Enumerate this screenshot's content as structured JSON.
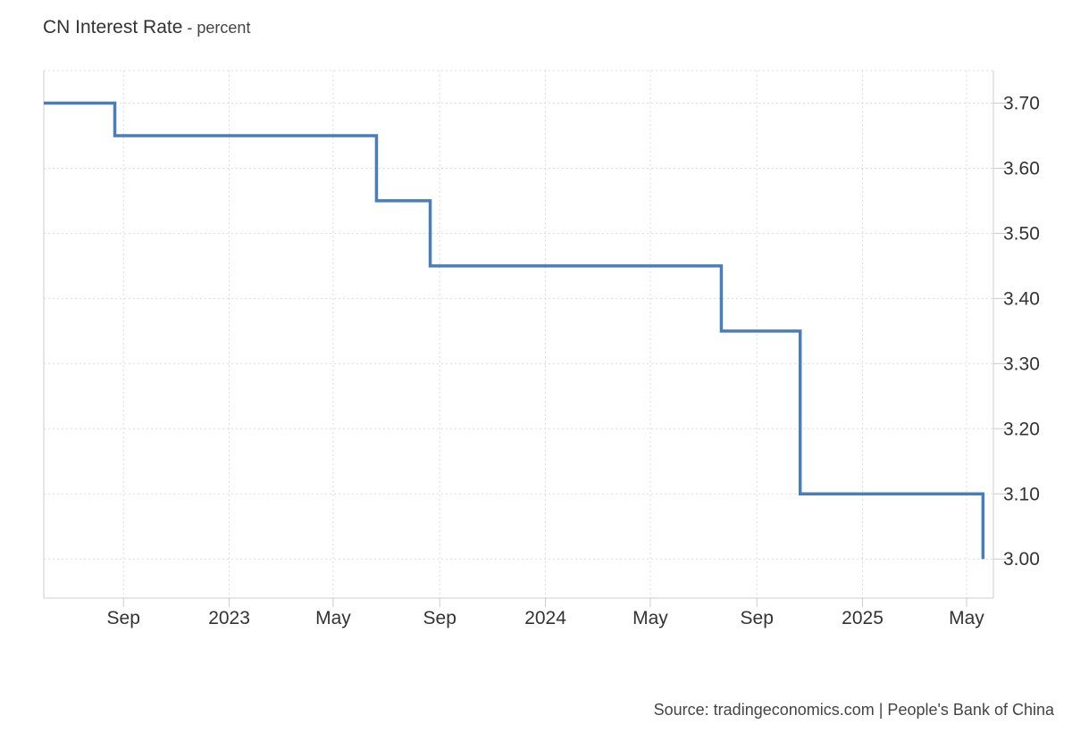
{
  "header": {
    "title": "CN Interest Rate",
    "unit": " - percent"
  },
  "footer": {
    "source": "Source: tradingeconomics.com | People's Bank of China"
  },
  "chart_data": {
    "type": "line",
    "title": "CN Interest Rate",
    "subtitle": "- percent",
    "xlabel": "",
    "ylabel": "",
    "step": true,
    "grid": true,
    "legend": "none",
    "line_color": "#4a7ebb",
    "xlim": [
      "2022-06-01",
      "2025-06-01"
    ],
    "ylim": [
      2.94,
      3.75
    ],
    "x_ticks": [
      {
        "date": "2022-09-01",
        "label": "Sep"
      },
      {
        "date": "2023-01-01",
        "label": "2023"
      },
      {
        "date": "2023-05-01",
        "label": "May"
      },
      {
        "date": "2023-09-01",
        "label": "Sep"
      },
      {
        "date": "2024-01-01",
        "label": "2024"
      },
      {
        "date": "2024-05-01",
        "label": "May"
      },
      {
        "date": "2024-09-01",
        "label": "Sep"
      },
      {
        "date": "2025-01-01",
        "label": "2025"
      },
      {
        "date": "2025-05-01",
        "label": "May"
      }
    ],
    "y_ticks": [
      {
        "value": 3.7,
        "label": "3.70"
      },
      {
        "value": 3.6,
        "label": "3.60"
      },
      {
        "value": 3.5,
        "label": "3.50"
      },
      {
        "value": 3.4,
        "label": "3.40"
      },
      {
        "value": 3.3,
        "label": "3.30"
      },
      {
        "value": 3.2,
        "label": "3.20"
      },
      {
        "value": 3.1,
        "label": "3.10"
      },
      {
        "value": 3.0,
        "label": "3.00"
      }
    ],
    "series": [
      {
        "x": [
          "2022-06-01",
          "2022-08-22",
          "2023-06-20",
          "2023-08-21",
          "2024-07-22",
          "2024-10-21",
          "2025-05-20"
        ],
        "y": [
          3.7,
          3.65,
          3.55,
          3.45,
          3.35,
          3.1,
          3.0
        ]
      }
    ]
  }
}
